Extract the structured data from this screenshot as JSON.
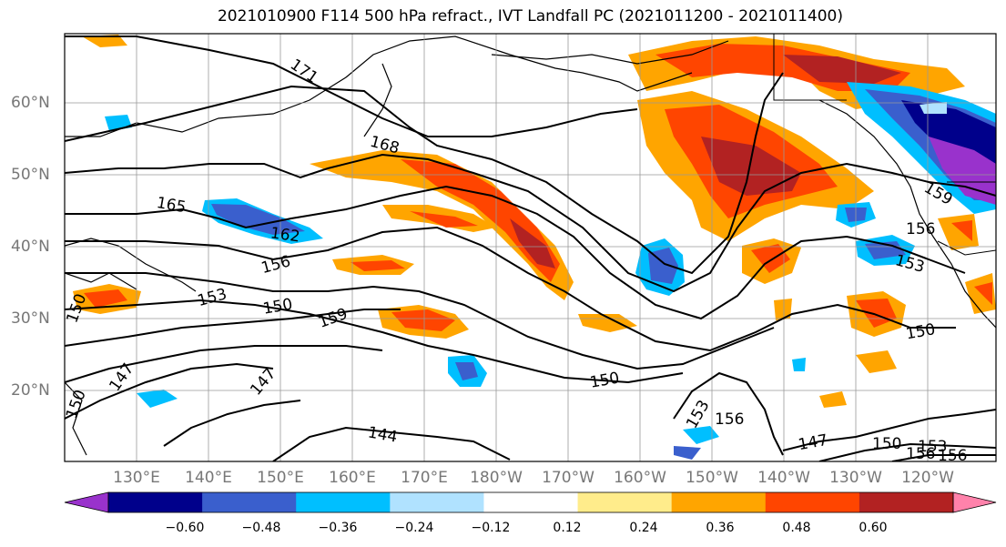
{
  "title": "2021010900 F114 500 hPa refract., IVT Landfall PC (2021011200 - 2021011400)",
  "lat_labels": [
    "60°N",
    "50°N",
    "40°N",
    "30°N",
    "20°N"
  ],
  "lon_labels": [
    "130°E",
    "140°E",
    "150°E",
    "160°E",
    "170°E",
    "180°W",
    "170°W",
    "160°W",
    "150°W",
    "140°W",
    "130°W",
    "120°W"
  ],
  "colorbar": {
    "ticks": [
      "−0.60",
      "−0.48",
      "−0.36",
      "−0.24",
      "−0.12",
      "0.12",
      "0.24",
      "0.36",
      "0.48",
      "0.60"
    ],
    "colors": [
      "#9932cc",
      "#00008b",
      "#3a5fcd",
      "#00bfff",
      "#b0e2ff",
      "#ffffff",
      "#ffec8b",
      "#ffa500",
      "#ff4500",
      "#b22222",
      "#ff82ab"
    ]
  },
  "contour_labels": [
    "171",
    "168",
    "165",
    "162",
    "156",
    "153",
    "150",
    "159",
    "147",
    "144",
    "150",
    "153",
    "156",
    "147",
    "150",
    "153",
    "156",
    "156",
    "150",
    "153",
    "159",
    "156",
    "150",
    "147",
    "150"
  ]
}
